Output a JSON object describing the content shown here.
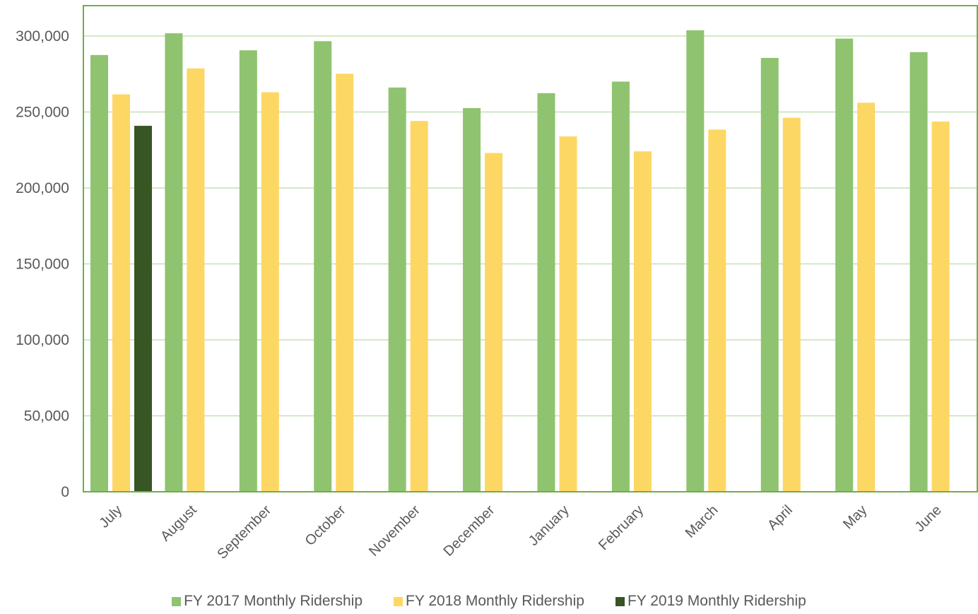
{
  "chart_data": {
    "type": "bar",
    "title": "",
    "xlabel": "",
    "ylabel": "",
    "categories": [
      "July",
      "August",
      "September",
      "October",
      "November",
      "December",
      "January",
      "February",
      "March",
      "April",
      "May",
      "June"
    ],
    "series": [
      {
        "name": "FY 2017 Monthly Ridership",
        "color": "#8fc36f",
        "values": [
          287500,
          301800,
          290600,
          296600,
          266100,
          252600,
          262400,
          270000,
          303800,
          285600,
          298300,
          289400
        ]
      },
      {
        "name": "FY 2018 Monthly Ridership",
        "color": "#fdd764",
        "values": [
          261600,
          278700,
          263000,
          275200,
          244100,
          223000,
          233900,
          224100,
          238400,
          246200,
          256100,
          243700
        ]
      },
      {
        "name": "FY 2019 Monthly Ridership",
        "color": "#375623",
        "values": [
          240900,
          null,
          null,
          null,
          null,
          null,
          null,
          null,
          null,
          null,
          null,
          null
        ]
      }
    ],
    "ylim": [
      0,
      320000
    ],
    "yticks": [
      0,
      50000,
      100000,
      150000,
      200000,
      250000,
      300000
    ],
    "ytick_labels": [
      "0",
      "50,000",
      "100,000",
      "150,000",
      "200,000",
      "250,000",
      "300,000"
    ],
    "grid": true,
    "legend_position": "bottom",
    "colors": {
      "axis": "#70ad47",
      "gridline": "#c5e0b4",
      "tick_text": "#595959"
    }
  }
}
